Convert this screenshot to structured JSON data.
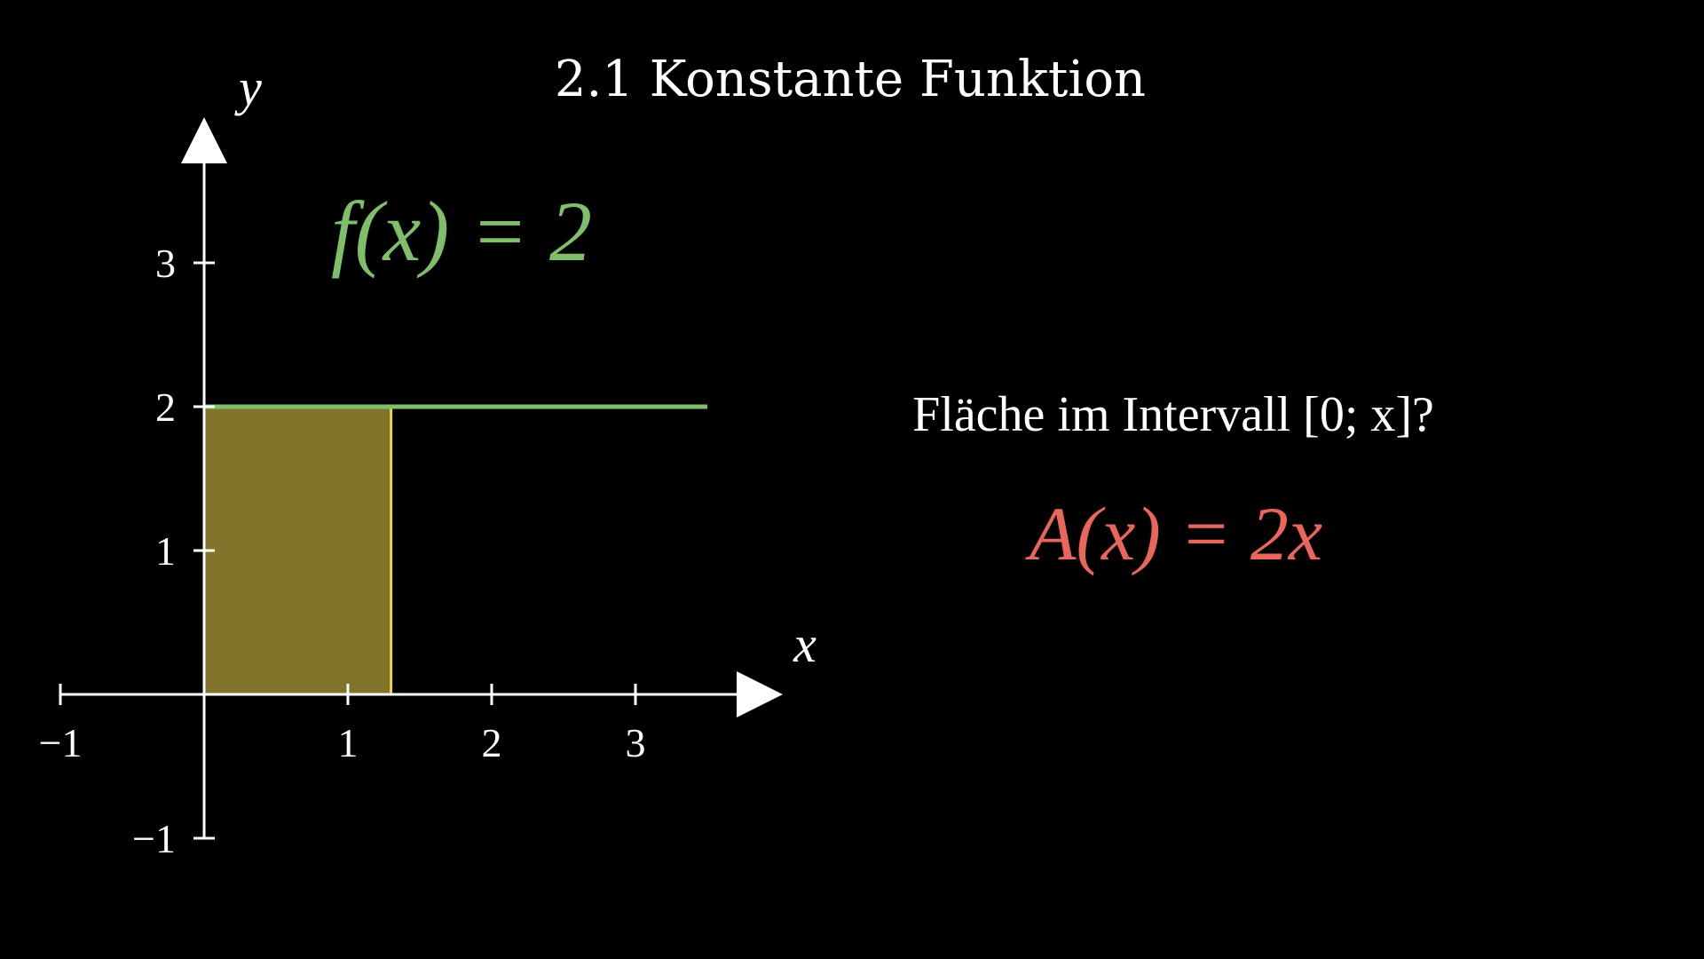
{
  "title": "2.1 Konstante Funktion",
  "colors": {
    "background": "#000000",
    "axis": "#ffffff",
    "function": "#7fbf6a",
    "area_fill": "#8a7a2e",
    "area_stroke": "#e8d44d",
    "area_formula": "#e8665a",
    "text": "#ffffff"
  },
  "chart_data": {
    "type": "line",
    "xlabel": "x",
    "ylabel": "y",
    "xlim": [
      -1,
      3.5
    ],
    "ylim": [
      -1,
      3.5
    ],
    "x_ticks": [
      -1,
      1,
      2,
      3
    ],
    "y_ticks": [
      -1,
      1,
      2,
      3
    ],
    "x_tick_labels": [
      "−1",
      "1",
      "2",
      "3"
    ],
    "y_tick_labels": [
      "−1",
      "1",
      "2",
      "3"
    ],
    "grid": false,
    "series": [
      {
        "x": [
          0,
          3.5
        ],
        "y": [
          2,
          2
        ]
      }
    ],
    "shaded_area": {
      "x_start": 0,
      "x_end": 1.3,
      "y_value": 2
    },
    "function_label": "f(x) = 2"
  },
  "question": {
    "text": "Fläche im Intervall [0; x]?"
  },
  "formula": {
    "text": "A(x) = 2x"
  }
}
